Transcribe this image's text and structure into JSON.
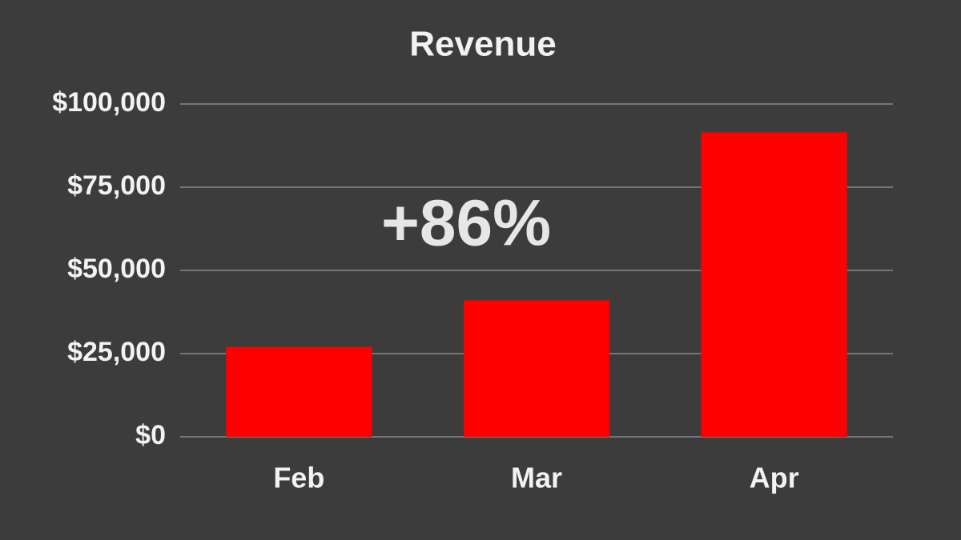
{
  "chart_data": {
    "type": "bar",
    "title": "Revenue",
    "annotation": "+86%",
    "categories": [
      "Feb",
      "Mar",
      "Apr"
    ],
    "values": [
      27000,
      41000,
      91500
    ],
    "color": "#ff0000",
    "ylim": [
      0,
      100000
    ],
    "yticks": [
      {
        "value": 0,
        "label": "$0"
      },
      {
        "value": 25000,
        "label": "$25,000"
      },
      {
        "value": 50000,
        "label": "$50,000"
      },
      {
        "value": 75000,
        "label": "$75,000"
      },
      {
        "value": 100000,
        "label": "$100,000"
      }
    ],
    "grid": true
  }
}
